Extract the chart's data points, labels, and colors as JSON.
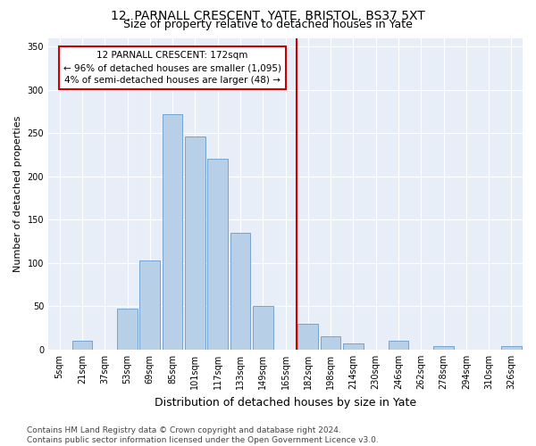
{
  "title1": "12, PARNALL CRESCENT, YATE, BRISTOL, BS37 5XT",
  "title2": "Size of property relative to detached houses in Yate",
  "xlabel": "Distribution of detached houses by size in Yate",
  "ylabel": "Number of detached properties",
  "categories": [
    "5sqm",
    "21sqm",
    "37sqm",
    "53sqm",
    "69sqm",
    "85sqm",
    "101sqm",
    "117sqm",
    "133sqm",
    "149sqm",
    "165sqm",
    "182sqm",
    "198sqm",
    "214sqm",
    "230sqm",
    "246sqm",
    "262sqm",
    "278sqm",
    "294sqm",
    "310sqm",
    "326sqm"
  ],
  "bar_values": [
    0,
    10,
    0,
    47,
    103,
    272,
    246,
    220,
    135,
    50,
    0,
    30,
    15,
    7,
    0,
    10,
    0,
    4,
    0,
    0,
    4
  ],
  "bar_color": "#b8cfe8",
  "bar_edge_color": "#6699cc",
  "vline_color": "#cc0000",
  "annotation_text": "12 PARNALL CRESCENT: 172sqm\n← 96% of detached houses are smaller (1,095)\n4% of semi-detached houses are larger (48) →",
  "annotation_box_color": "#ffffff",
  "annotation_box_edge": "#cc0000",
  "ylim": [
    0,
    360
  ],
  "yticks": [
    0,
    50,
    100,
    150,
    200,
    250,
    300,
    350
  ],
  "bg_color": "#e8eef7",
  "footer": "Contains HM Land Registry data © Crown copyright and database right 2024.\nContains public sector information licensed under the Open Government Licence v3.0.",
  "title1_fontsize": 10,
  "title2_fontsize": 9,
  "xlabel_fontsize": 9,
  "ylabel_fontsize": 8,
  "annotation_fontsize": 7.5,
  "footer_fontsize": 6.5,
  "tick_fontsize": 7
}
